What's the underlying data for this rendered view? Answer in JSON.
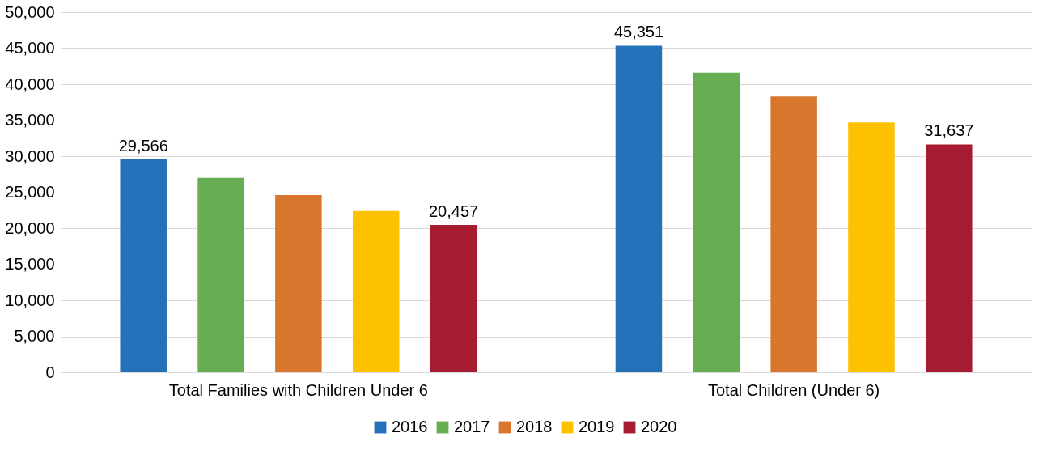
{
  "chart_data": {
    "type": "bar",
    "categories": [
      "Total Families with Children Under 6",
      "Total Children (Under 6)"
    ],
    "series": [
      {
        "name": "2016",
        "color": "#2470b9",
        "values": [
          29566,
          45351
        ],
        "value_labels": [
          "29,566",
          "45,351"
        ]
      },
      {
        "name": "2017",
        "color": "#67ad52",
        "values": [
          27000,
          41600
        ],
        "value_labels": [
          null,
          null
        ]
      },
      {
        "name": "2018",
        "color": "#d8762e",
        "values": [
          24600,
          38300
        ],
        "value_labels": [
          null,
          null
        ]
      },
      {
        "name": "2019",
        "color": "#fdc100",
        "values": [
          22400,
          34700
        ],
        "value_labels": [
          null,
          null
        ]
      },
      {
        "name": "2020",
        "color": "#a61c31",
        "values": [
          20457,
          31637
        ],
        "value_labels": [
          "20,457",
          "31,637"
        ]
      }
    ],
    "ylim": [
      0,
      50000
    ],
    "yticks": [
      0,
      {
        "value": 5000,
        "label": "5,000"
      },
      {
        "value": 10000,
        "label": "10,000"
      },
      {
        "value": 15000,
        "label": "15,000"
      },
      {
        "value": 20000,
        "label": "20,000"
      },
      {
        "value": 25000,
        "label": "25,000"
      },
      {
        "value": 30000,
        "label": "30,000"
      },
      {
        "value": 35000,
        "label": "35,000"
      },
      {
        "value": 40000,
        "label": "40,000"
      },
      {
        "value": 45000,
        "label": "45,000"
      },
      {
        "value": 50000,
        "label": "50,000"
      }
    ],
    "grid": "y",
    "legend": "bottom"
  }
}
